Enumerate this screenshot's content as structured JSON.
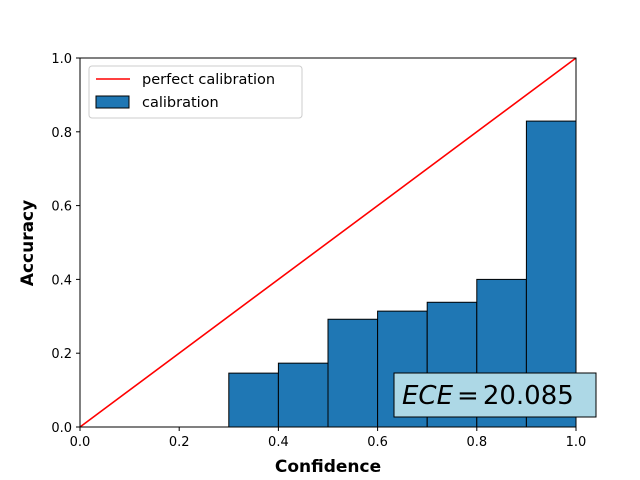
{
  "chart_data": {
    "type": "bar",
    "xlabel": "Confidence",
    "ylabel": "Accuracy",
    "xlim": [
      0.0,
      1.0
    ],
    "ylim": [
      0.0,
      1.0
    ],
    "xticks": [
      "0.0",
      "0.2",
      "0.4",
      "0.6",
      "0.8",
      "1.0"
    ],
    "yticks": [
      "0.0",
      "0.2",
      "0.4",
      "0.6",
      "0.8",
      "1.0"
    ],
    "grid": false,
    "legend_position": "top-left",
    "bin_width": 0.1,
    "bars": [
      {
        "x_start": 0.3,
        "value": 0.146
      },
      {
        "x_start": 0.4,
        "value": 0.173
      },
      {
        "x_start": 0.5,
        "value": 0.292
      },
      {
        "x_start": 0.6,
        "value": 0.314
      },
      {
        "x_start": 0.7,
        "value": 0.338
      },
      {
        "x_start": 0.8,
        "value": 0.4
      },
      {
        "x_start": 0.9,
        "value": 0.829
      }
    ],
    "series": [
      {
        "name": "perfect calibration",
        "type": "line",
        "x": [
          0.0,
          1.0
        ],
        "y": [
          0.0,
          1.0
        ],
        "color": "#ff0000"
      },
      {
        "name": "calibration",
        "type": "bar",
        "color": "#1f77b4",
        "edgecolor": "#000000"
      }
    ],
    "annotation": {
      "label": "ECE",
      "equals": "=",
      "value": "20.085",
      "box_color": "#add8e6"
    }
  }
}
